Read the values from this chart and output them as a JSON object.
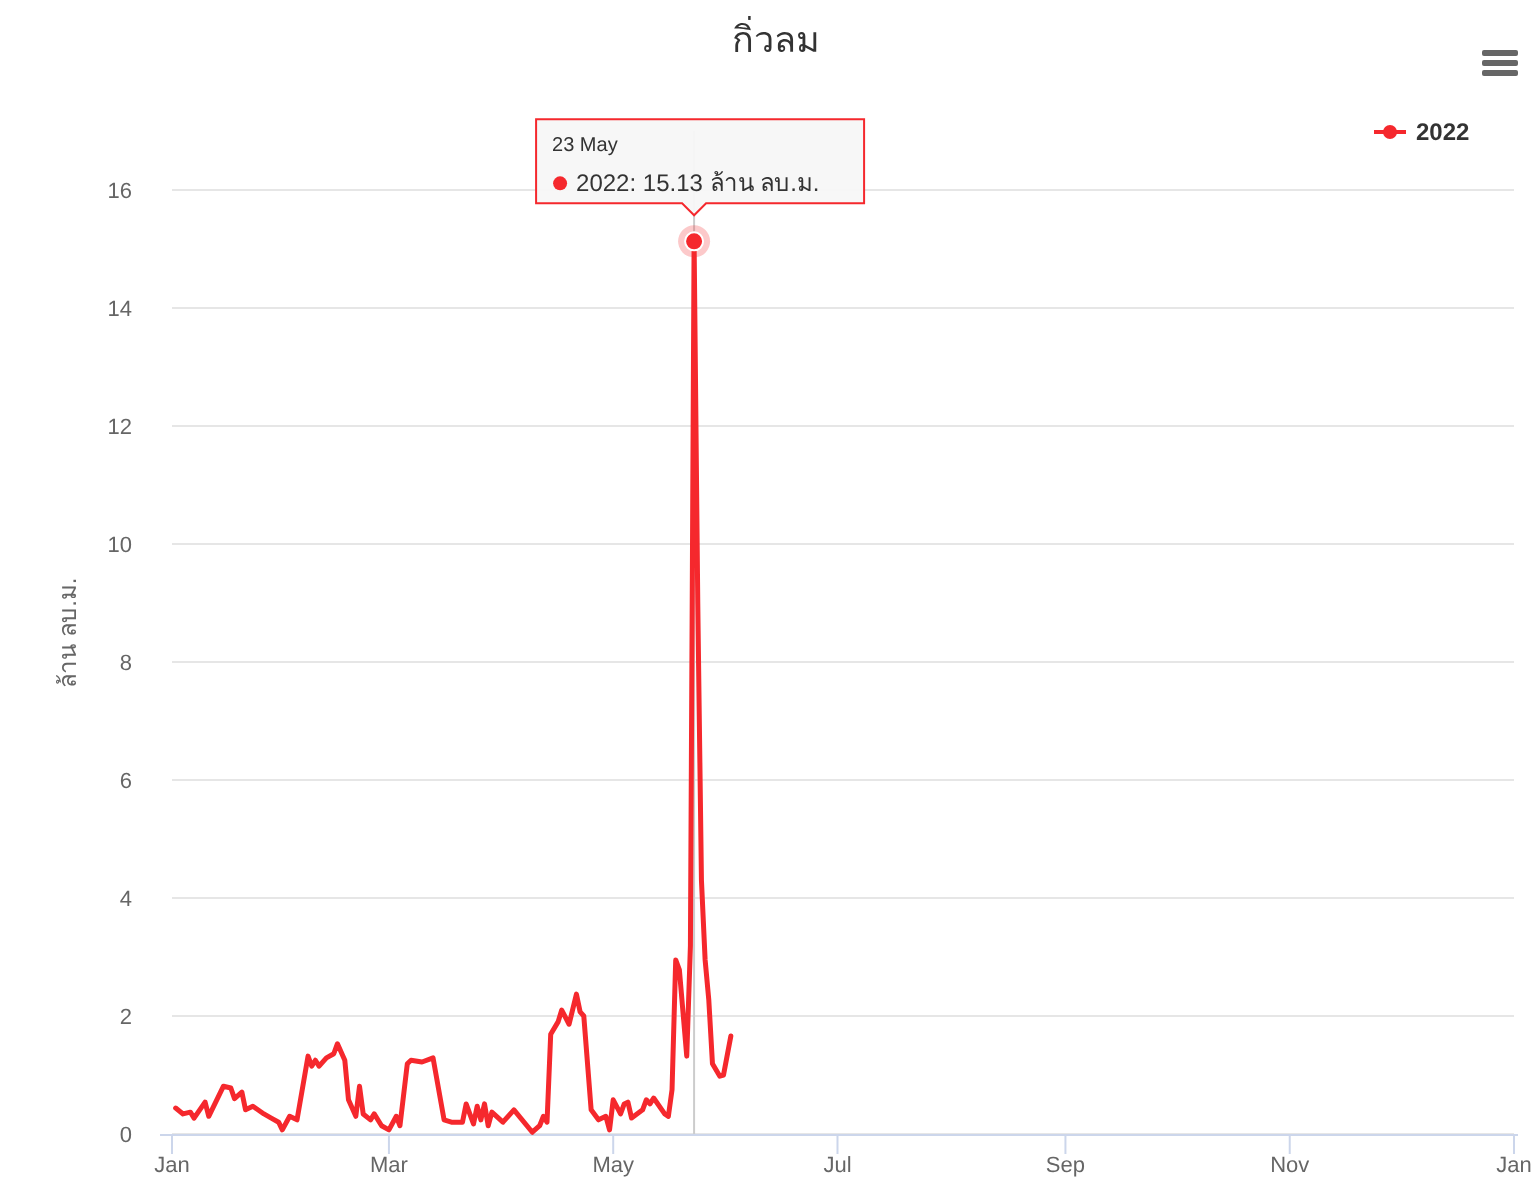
{
  "chart_data": {
    "type": "line",
    "title": "กิ่วลม",
    "ylabel": "ล้าน ลบ.ม.",
    "x": [
      "2022-01-02",
      "2022-01-04",
      "2022-01-06",
      "2022-01-07",
      "2022-01-10",
      "2022-01-11",
      "2022-01-15",
      "2022-01-17",
      "2022-01-18",
      "2022-01-20",
      "2022-01-21",
      "2022-01-23",
      "2022-01-26",
      "2022-01-28",
      "2022-01-30",
      "2022-01-31",
      "2022-02-02",
      "2022-02-04",
      "2022-02-07",
      "2022-02-08",
      "2022-02-09",
      "2022-02-10",
      "2022-02-12",
      "2022-02-14",
      "2022-02-15",
      "2022-02-17",
      "2022-02-18",
      "2022-02-20",
      "2022-02-21",
      "2022-02-22",
      "2022-02-24",
      "2022-02-25",
      "2022-02-27",
      "2022-03-01",
      "2022-03-03",
      "2022-03-04",
      "2022-03-06",
      "2022-03-07",
      "2022-03-10",
      "2022-03-13",
      "2022-03-16",
      "2022-03-18",
      "2022-03-21",
      "2022-03-22",
      "2022-03-24",
      "2022-03-25",
      "2022-03-26",
      "2022-03-27",
      "2022-03-28",
      "2022-03-29",
      "2022-04-01",
      "2022-04-04",
      "2022-04-09",
      "2022-04-11",
      "2022-04-12",
      "2022-04-13",
      "2022-04-14",
      "2022-04-16",
      "2022-04-17",
      "2022-04-19",
      "2022-04-21",
      "2022-04-22",
      "2022-04-23",
      "2022-04-25",
      "2022-04-27",
      "2022-04-29",
      "2022-04-30",
      "2022-05-01",
      "2022-05-03",
      "2022-05-04",
      "2022-05-05",
      "2022-05-06",
      "2022-05-09",
      "2022-05-10",
      "2022-05-11",
      "2022-05-12",
      "2022-05-15",
      "2022-05-16",
      "2022-05-17",
      "2022-05-18",
      "2022-05-19",
      "2022-05-21",
      "2022-05-22",
      "2022-05-23",
      "2022-05-24",
      "2022-05-25",
      "2022-05-26",
      "2022-05-27",
      "2022-05-28",
      "2022-05-30",
      "2022-05-31",
      "2022-06-02"
    ],
    "series": [
      {
        "name": "2022",
        "color": "#f5282d",
        "values": [
          0.44,
          0.34,
          0.37,
          0.27,
          0.54,
          0.3,
          0.81,
          0.78,
          0.6,
          0.71,
          0.41,
          0.47,
          0.34,
          0.27,
          0.2,
          0.07,
          0.3,
          0.24,
          1.32,
          1.15,
          1.25,
          1.15,
          1.29,
          1.36,
          1.53,
          1.25,
          0.58,
          0.3,
          0.81,
          0.34,
          0.24,
          0.34,
          0.14,
          0.07,
          0.3,
          0.14,
          1.19,
          1.25,
          1.22,
          1.29,
          0.24,
          0.2,
          0.2,
          0.51,
          0.17,
          0.47,
          0.24,
          0.51,
          0.14,
          0.37,
          0.2,
          0.41,
          0.03,
          0.14,
          0.3,
          0.2,
          1.69,
          1.9,
          2.1,
          1.86,
          2.37,
          2.07,
          2.0,
          0.41,
          0.24,
          0.3,
          0.07,
          0.58,
          0.34,
          0.51,
          0.54,
          0.27,
          0.41,
          0.58,
          0.51,
          0.61,
          0.34,
          0.3,
          0.75,
          2.95,
          2.78,
          1.32,
          3.19,
          15.13,
          9.0,
          4.3,
          2.95,
          2.27,
          1.19,
          0.98,
          1.0,
          1.66
        ]
      }
    ],
    "xlim": [
      "2022-01-01",
      "2023-01-01"
    ],
    "xticks": [
      {
        "value": "2022-01-01",
        "label": "Jan"
      },
      {
        "value": "2022-03-01",
        "label": "Mar"
      },
      {
        "value": "2022-05-01",
        "label": "May"
      },
      {
        "value": "2022-07-01",
        "label": "Jul"
      },
      {
        "value": "2022-09-01",
        "label": "Sep"
      },
      {
        "value": "2022-11-01",
        "label": "Nov"
      },
      {
        "value": "2023-01-01",
        "label": "Jan"
      }
    ],
    "ylim": [
      0,
      17
    ],
    "yticks": [
      0,
      2,
      4,
      6,
      8,
      10,
      12,
      14,
      16
    ],
    "grid": "y",
    "legend": "top right",
    "ref_lines": [
      {
        "axis": "x",
        "value": "2022-05-23",
        "color": "#cccccc"
      }
    ],
    "annotations": [
      "23 May",
      "2022: 15.13 ล้าน ลบ.ม."
    ]
  }
}
